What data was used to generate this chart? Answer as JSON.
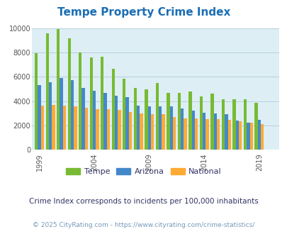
{
  "title": "Tempe Property Crime Index",
  "title_color": "#1a6eb5",
  "plot_bg_color": "#ddeef5",
  "fig_bg_color": "#ffffff",
  "years": [
    1999,
    2000,
    2001,
    2002,
    2003,
    2004,
    2005,
    2006,
    2007,
    2008,
    2009,
    2010,
    2011,
    2012,
    2013,
    2014,
    2015,
    2016,
    2017,
    2018,
    2019,
    2020
  ],
  "tempe": [
    7950,
    9550,
    9900,
    9150,
    8000,
    7600,
    7650,
    6650,
    5850,
    5100,
    4950,
    5500,
    4700,
    4700,
    4800,
    4400,
    4600,
    4150,
    4150,
    4150,
    3850,
    0
  ],
  "arizona": [
    5300,
    5550,
    5900,
    5700,
    5100,
    4850,
    4650,
    4450,
    4350,
    3600,
    3550,
    3550,
    3550,
    3400,
    3200,
    3050,
    3000,
    2900,
    2400,
    2200,
    2450,
    0
  ],
  "national": [
    3600,
    3700,
    3650,
    3550,
    3450,
    3350,
    3350,
    3250,
    3100,
    3000,
    2950,
    2900,
    2700,
    2600,
    2550,
    2500,
    2500,
    2450,
    2350,
    2200,
    2100,
    0
  ],
  "tempe_color": "#77bb33",
  "arizona_color": "#4488cc",
  "national_color": "#ffaa33",
  "ylim": [
    0,
    10000
  ],
  "yticks": [
    0,
    2000,
    4000,
    6000,
    8000,
    10000
  ],
  "xtick_labels": [
    "1999",
    "2004",
    "2009",
    "2014",
    "2019"
  ],
  "xtick_positions": [
    1999,
    2004,
    2009,
    2014,
    2019
  ],
  "subtitle": "Crime Index corresponds to incidents per 100,000 inhabitants",
  "subtitle_color": "#333366",
  "footer": "© 2025 CityRating.com - https://www.cityrating.com/crime-statistics/",
  "footer_color": "#7799bb",
  "legend_labels": [
    "Tempe",
    "Arizona",
    "National"
  ],
  "grid_color": "#b8d0dd",
  "title_fontsize": 11,
  "subtitle_fontsize": 7.5,
  "footer_fontsize": 6.5,
  "legend_fontsize": 8
}
